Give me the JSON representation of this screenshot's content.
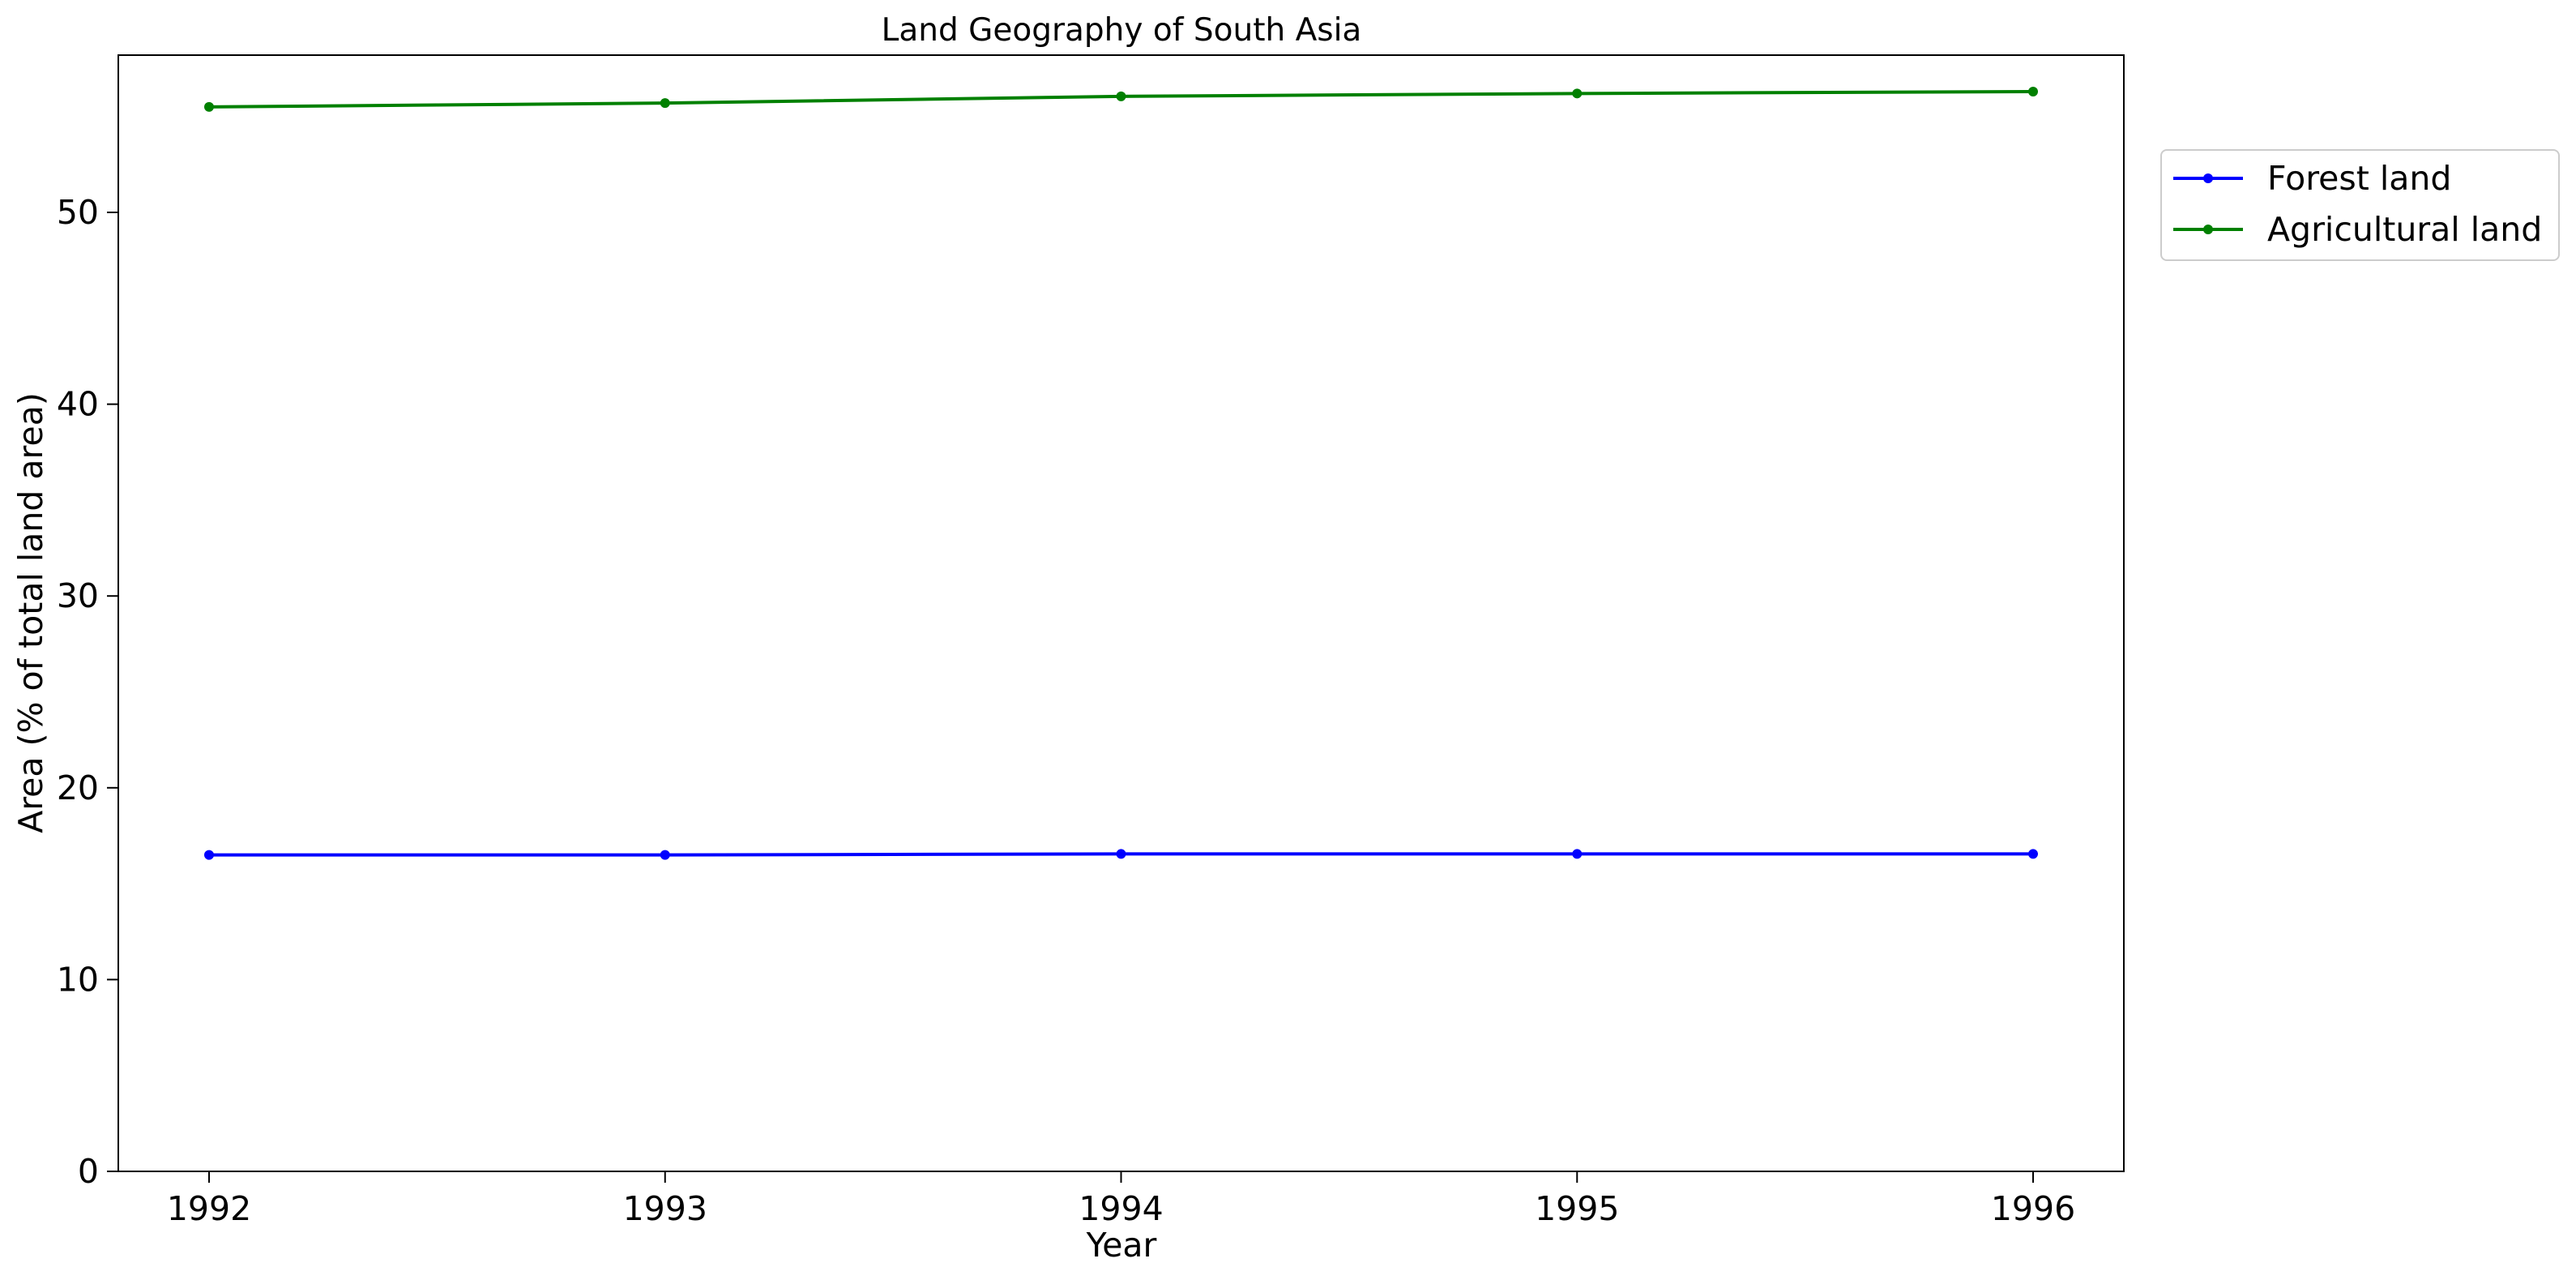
{
  "chart_data": {
    "type": "line",
    "title": "Land Geography of South Asia",
    "xlabel": "Year",
    "ylabel": "Area (% of total land area)",
    "x": [
      1992,
      1993,
      1994,
      1995,
      1996
    ],
    "xticks": [
      "1992",
      "1993",
      "1994",
      "1995",
      "1996"
    ],
    "yticks": [
      "0",
      "10",
      "20",
      "30",
      "40",
      "50"
    ],
    "ylim": [
      0,
      58.2
    ],
    "grid": false,
    "legend_position": "outside-top-right",
    "series": [
      {
        "name": "Forest land",
        "color": "#0000ff",
        "values": [
          16.5,
          16.5,
          16.55,
          16.55,
          16.55
        ]
      },
      {
        "name": "Agricultural land",
        "color": "#008000",
        "values": [
          55.5,
          55.7,
          56.05,
          56.2,
          56.3
        ]
      }
    ]
  }
}
